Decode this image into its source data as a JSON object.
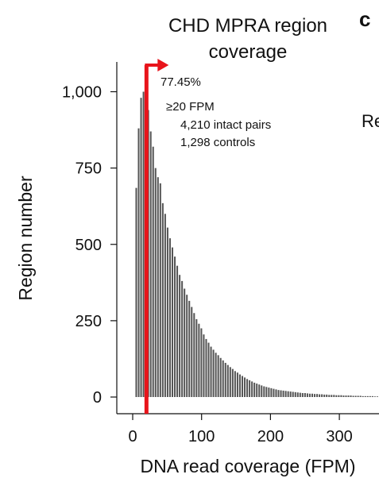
{
  "chart_data": {
    "type": "bar",
    "title": "CHD MPRA region coverage",
    "title_lines": [
      "CHD MPRA region",
      "coverage"
    ],
    "xlabel": "DNA read coverage (FPM)",
    "ylabel": "Region number",
    "xlim": [
      -20,
      360
    ],
    "ylim": [
      0,
      1100
    ],
    "xticks": [
      0,
      100,
      200,
      300
    ],
    "xtick_labels": [
      "0",
      "100",
      "200",
      "300"
    ],
    "yticks": [
      0,
      250,
      500,
      750,
      1000
    ],
    "ytick_labels": [
      "0",
      "250",
      "500",
      "750",
      "1,000"
    ],
    "bin_width": 3.5,
    "bin_start": 4,
    "values": [
      685,
      880,
      980,
      1000,
      975,
      940,
      870,
      820,
      750,
      720,
      700,
      635,
      600,
      555,
      520,
      490,
      460,
      430,
      400,
      380,
      355,
      335,
      315,
      295,
      275,
      255,
      240,
      225,
      205,
      190,
      178,
      165,
      155,
      145,
      137,
      128,
      120,
      112,
      105,
      98,
      92,
      85,
      80,
      74,
      69,
      64,
      59,
      55,
      51,
      47,
      44,
      41,
      38,
      35,
      33,
      31,
      29,
      27,
      25,
      23,
      22,
      21,
      20,
      19,
      18,
      17,
      16,
      15,
      14,
      13,
      13,
      12,
      11,
      11,
      10,
      10,
      9,
      9,
      8,
      8,
      7,
      7,
      7,
      6,
      6,
      6,
      5,
      5,
      5,
      5,
      4,
      4,
      4,
      4,
      3,
      3,
      3,
      3,
      3,
      2,
      2
    ],
    "threshold": 20,
    "bar_color": "#555555",
    "threshold_color": "#e8141b",
    "annotations": {
      "percent": "77.45%",
      "fpm": "≥20 FPM",
      "pairs": "4,210 intact pairs",
      "controls": "1,298 controls"
    },
    "panel_label": "c",
    "cut_text": "Re"
  }
}
